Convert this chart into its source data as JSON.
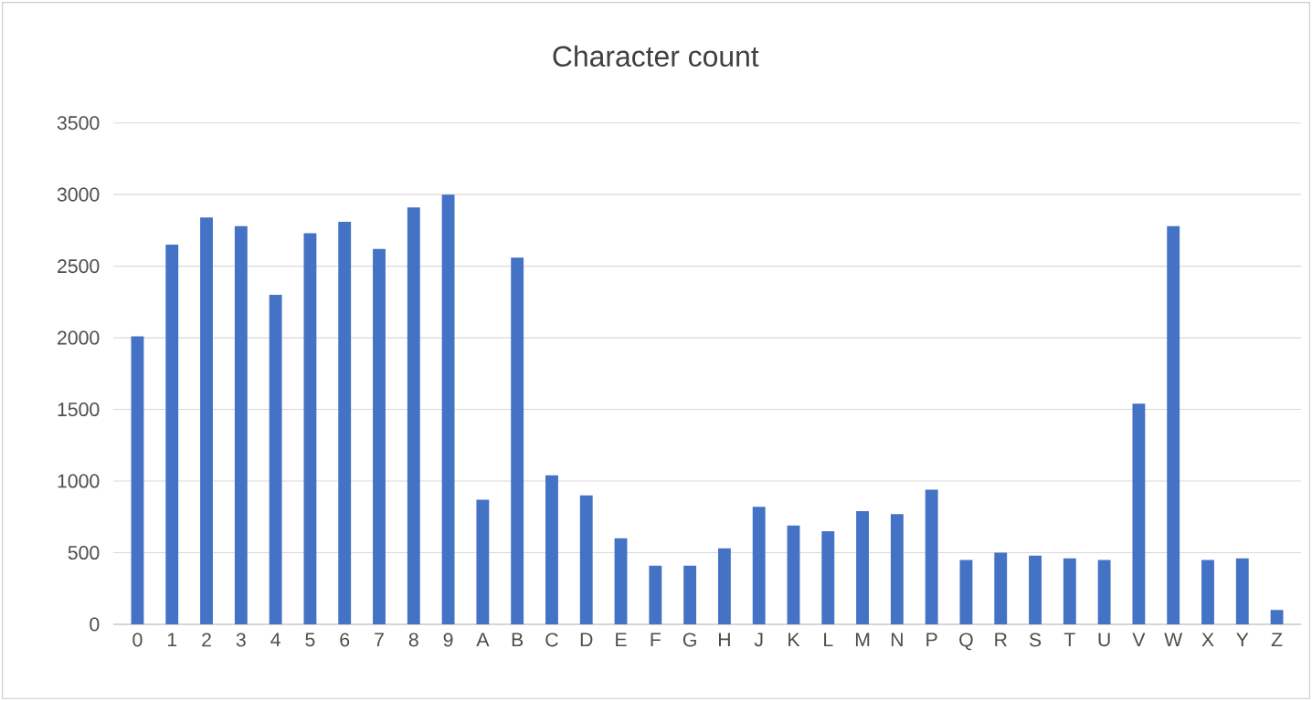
{
  "chart_data": {
    "type": "bar",
    "title": "Character count",
    "categories": [
      "0",
      "1",
      "2",
      "3",
      "4",
      "5",
      "6",
      "7",
      "8",
      "9",
      "A",
      "B",
      "C",
      "D",
      "E",
      "F",
      "G",
      "H",
      "J",
      "K",
      "L",
      "M",
      "N",
      "P",
      "Q",
      "R",
      "S",
      "T",
      "U",
      "V",
      "W",
      "X",
      "Y",
      "Z"
    ],
    "values": [
      2010,
      2650,
      2840,
      2780,
      2300,
      2730,
      2810,
      2620,
      2910,
      3000,
      870,
      2560,
      1040,
      900,
      600,
      410,
      410,
      530,
      820,
      690,
      650,
      790,
      770,
      940,
      450,
      500,
      480,
      460,
      450,
      1540,
      2780,
      450,
      460,
      100
    ],
    "color": "#4472c4",
    "ylim": [
      0,
      3500
    ],
    "yticks": [
      0,
      500,
      1000,
      1500,
      2000,
      2500,
      3000,
      3500
    ],
    "grid": "y"
  }
}
